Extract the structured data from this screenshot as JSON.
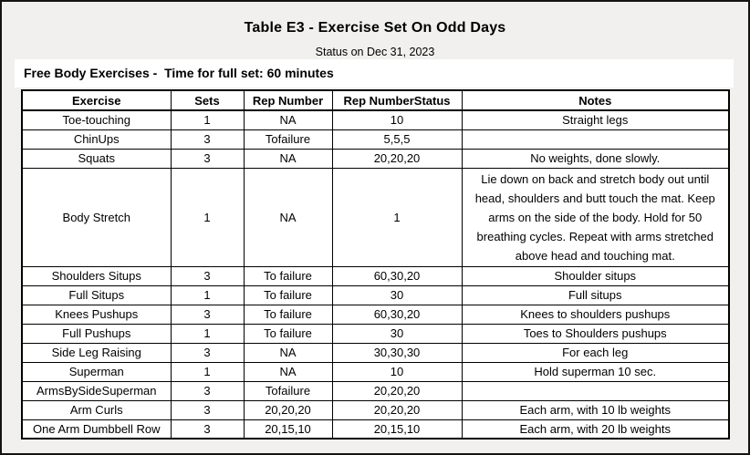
{
  "page": {
    "title": "Table E3 - Exercise Set On Odd Days",
    "status_line": "Status on Dec 31, 2023",
    "section_header": "Free Body Exercises -  Time for full set: 60 minutes"
  },
  "colors": {
    "page_background": "#f1f0ee",
    "band_background": "#ffffff",
    "border": "#000000",
    "text": "#000000"
  },
  "table": {
    "columns": [
      "Exercise",
      "Sets",
      "Rep Number",
      "Rep NumberStatus",
      "Notes"
    ],
    "rows": [
      {
        "exercise": "Toe-touching",
        "sets": "1",
        "rep_number": "NA",
        "rep_number_status": "10",
        "notes": "Straight legs"
      },
      {
        "exercise": "ChinUps",
        "sets": "3",
        "rep_number": "Tofailure",
        "rep_number_status": "5,5,5",
        "notes": ""
      },
      {
        "exercise": "Squats",
        "sets": "3",
        "rep_number": "NA",
        "rep_number_status": "20,20,20",
        "notes": "No weights, done slowly."
      },
      {
        "exercise": "Body Stretch",
        "sets": "1",
        "rep_number": "NA",
        "rep_number_status": "1",
        "notes": "Lie down on back and stretch body out until head, shoulders and butt touch the mat. Keep arms on the side of the body. Hold for 50 breathing cycles. Repeat with arms stretched above head and touching mat."
      },
      {
        "exercise": "Shoulders Situps",
        "sets": "3",
        "rep_number": "To failure",
        "rep_number_status": "60,30,20",
        "notes": "Shoulder situps"
      },
      {
        "exercise": "Full Situps",
        "sets": "1",
        "rep_number": "To failure",
        "rep_number_status": "30",
        "notes": "Full situps"
      },
      {
        "exercise": "Knees Pushups",
        "sets": "3",
        "rep_number": "To failure",
        "rep_number_status": "60,30,20",
        "notes": "Knees to shoulders pushups"
      },
      {
        "exercise": "Full Pushups",
        "sets": "1",
        "rep_number": "To failure",
        "rep_number_status": "30",
        "notes": "Toes to Shoulders pushups"
      },
      {
        "exercise": "Side Leg Raising",
        "sets": "3",
        "rep_number": "NA",
        "rep_number_status": "30,30,30",
        "notes": "For each leg"
      },
      {
        "exercise": "Superman",
        "sets": "1",
        "rep_number": "NA",
        "rep_number_status": "10",
        "notes": "Hold superman 10 sec."
      },
      {
        "exercise": "ArmsBySideSuperman",
        "sets": "3",
        "rep_number": "Tofailure",
        "rep_number_status": "20,20,20",
        "notes": ""
      },
      {
        "exercise": "Arm Curls",
        "sets": "3",
        "rep_number": "20,20,20",
        "rep_number_status": "20,20,20",
        "notes": "Each arm, with 10 lb weights"
      },
      {
        "exercise": "One Arm Dumbbell Row",
        "sets": "3",
        "rep_number": "20,15,10",
        "rep_number_status": "20,15,10",
        "notes": "Each arm, with 20 lb weights"
      }
    ]
  }
}
